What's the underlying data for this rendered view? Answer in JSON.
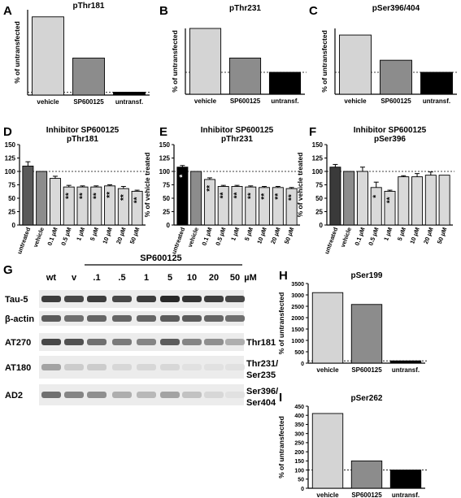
{
  "chart_data": [
    {
      "panel": "A",
      "type": "bar",
      "title": "pThr181",
      "ylabel": "% of untransfected",
      "ylim": [
        0,
        3000
      ],
      "ticks": [],
      "categories": [
        "vehicle",
        "SP600125",
        "untransf."
      ],
      "values": [
        2750,
        1300,
        100
      ],
      "colors": [
        "#d4d4d4",
        "#8c8c8c",
        "#000000"
      ],
      "reference_line": 100
    },
    {
      "panel": "B",
      "type": "bar",
      "title": "pThr231",
      "ylabel": "% of untransfected",
      "ylim": [
        0,
        300
      ],
      "ticks": [],
      "categories": [
        "vehicle",
        "SP600125",
        "untransf."
      ],
      "values": [
        300,
        165,
        100
      ],
      "colors": [
        "#d4d4d4",
        "#8c8c8c",
        "#000000"
      ],
      "reference_line": 100
    },
    {
      "panel": "C",
      "type": "bar",
      "title": "pSer396/404",
      "ylabel": "% of untransfected",
      "ylim": [
        0,
        300
      ],
      "ticks": [],
      "categories": [
        "vehicle",
        "SP600125",
        "untransf."
      ],
      "values": [
        270,
        155,
        100
      ],
      "colors": [
        "#d4d4d4",
        "#8c8c8c",
        "#000000"
      ],
      "reference_line": 100
    },
    {
      "panel": "D",
      "type": "bar",
      "title": "Inhibitor SP600125",
      "subtitle": "pThr181",
      "ylabel": "% of vehicle treated",
      "ylim": [
        0,
        150
      ],
      "ticks": [
        0,
        25,
        50,
        75,
        100,
        125,
        150
      ],
      "categories": [
        "untreated",
        "vehicle",
        "0.1 µM",
        "0.5 µM",
        "1 µM",
        "5 µM",
        "10 µM",
        "20 µM",
        "50 µM"
      ],
      "values": [
        110,
        100,
        87,
        71,
        71,
        71,
        73,
        68,
        63
      ],
      "errors": [
        8,
        0,
        4,
        3,
        2,
        2,
        2,
        4,
        2
      ],
      "colors": [
        "#595959",
        "#8c8c8c",
        "#d9d9d9",
        "#d9d9d9",
        "#d9d9d9",
        "#d9d9d9",
        "#d9d9d9",
        "#d9d9d9",
        "#d9d9d9"
      ],
      "significance": [
        "",
        "",
        "",
        "**",
        "**",
        "**",
        "**",
        "**",
        "**"
      ],
      "reference_line": 100
    },
    {
      "panel": "E",
      "type": "bar",
      "title": "Inhibitor SP600125",
      "subtitle": "pThr231",
      "ylabel": "% of vehicle treated",
      "ylim": [
        0,
        150
      ],
      "ticks": [
        0,
        25,
        50,
        75,
        100,
        125,
        150
      ],
      "categories": [
        "untreated",
        "vehicle",
        "0.1 µM",
        "0.5 µM",
        "1 µM",
        "5 µM",
        "10 µM",
        "20 µM",
        "50 µM"
      ],
      "values": [
        108,
        100,
        85,
        72,
        72,
        71,
        70,
        70,
        68
      ],
      "errors": [
        3,
        0,
        3,
        2,
        2,
        2,
        2,
        2,
        2
      ],
      "colors": [
        "#000000",
        "#8c8c8c",
        "#d9d9d9",
        "#d9d9d9",
        "#d9d9d9",
        "#d9d9d9",
        "#d9d9d9",
        "#d9d9d9",
        "#d9d9d9"
      ],
      "significance": [
        "*",
        "",
        "**",
        "**",
        "**",
        "**",
        "**",
        "**",
        "**"
      ],
      "reference_line": 100
    },
    {
      "panel": "F",
      "type": "bar",
      "title": "Inhibitor SP600125",
      "subtitle": "pSer396",
      "ylabel": "% of vehicle treated",
      "ylim": [
        0,
        150
      ],
      "ticks": [
        0,
        25,
        50,
        75,
        100,
        125,
        150
      ],
      "categories": [
        "untreated",
        "vehicle",
        "0.1 µM",
        "0.5 µM",
        "1 µM",
        "5 µM",
        "10 µM",
        "20 µM",
        "50 µM"
      ],
      "values": [
        108,
        100,
        100,
        70,
        63,
        90,
        90,
        93,
        93
      ],
      "errors": [
        5,
        0,
        8,
        10,
        2,
        2,
        6,
        6,
        0
      ],
      "colors": [
        "#3a3a3a",
        "#8c8c8c",
        "#d9d9d9",
        "#d9d9d9",
        "#d9d9d9",
        "#d9d9d9",
        "#d9d9d9",
        "#d9d9d9",
        "#d9d9d9"
      ],
      "significance": [
        "",
        "",
        "",
        "*",
        "**",
        "",
        "",
        "",
        ""
      ],
      "reference_line": 100
    },
    {
      "panel": "H",
      "type": "bar",
      "title": "pSer199",
      "ylabel": "% of untransfected",
      "ylim": [
        0,
        3500
      ],
      "ticks": [
        0,
        500,
        1000,
        1500,
        2000,
        2500,
        3000,
        3500
      ],
      "categories": [
        "vehicle",
        "SP600125",
        "untransf."
      ],
      "values": [
        3100,
        2580,
        100
      ],
      "colors": [
        "#d4d4d4",
        "#8c8c8c",
        "#000000"
      ],
      "reference_line": 100
    },
    {
      "panel": "I",
      "type": "bar",
      "title": "pSer262",
      "ylabel": "% of untransfected",
      "ylim": [
        0,
        450
      ],
      "ticks": [
        0,
        50,
        100,
        150,
        200,
        250,
        300,
        350,
        400,
        450
      ],
      "categories": [
        "vehicle",
        "SP600125",
        "untransf."
      ],
      "values": [
        410,
        150,
        100
      ],
      "colors": [
        "#d4d4d4",
        "#8c8c8c",
        "#000000"
      ],
      "reference_line": 100
    }
  ],
  "blot": {
    "panel": "G",
    "treatment": "SP600125",
    "lanes": [
      "wt",
      "v",
      ".1",
      ".5",
      "1",
      "5",
      "10",
      "20",
      "50"
    ],
    "unit": "µM",
    "rows": [
      {
        "left": "Tau-5",
        "right": [],
        "intensity": [
          0.85,
          0.8,
          0.85,
          0.8,
          0.85,
          0.95,
          0.9,
          0.85,
          0.8
        ]
      },
      {
        "left": "β-actin",
        "right": [],
        "intensity": [
          0.7,
          0.6,
          0.65,
          0.65,
          0.65,
          0.7,
          0.7,
          0.65,
          0.6
        ]
      },
      {
        "left": "AT270",
        "right": [
          "Thr181"
        ],
        "intensity": [
          0.8,
          0.75,
          0.6,
          0.55,
          0.5,
          0.7,
          0.5,
          0.45,
          0.3
        ]
      },
      {
        "left": "AT180",
        "right": [
          "Thr231/",
          "Ser235"
        ],
        "intensity": [
          0.35,
          0.15,
          0.15,
          0.1,
          0.1,
          0.1,
          0.05,
          0.05,
          0.05
        ]
      },
      {
        "left": "AD2",
        "right": [
          "Ser396/",
          "Ser404"
        ],
        "intensity": [
          0.6,
          0.5,
          0.45,
          0.3,
          0.25,
          0.35,
          0.2,
          0.1,
          0.05
        ]
      }
    ]
  }
}
